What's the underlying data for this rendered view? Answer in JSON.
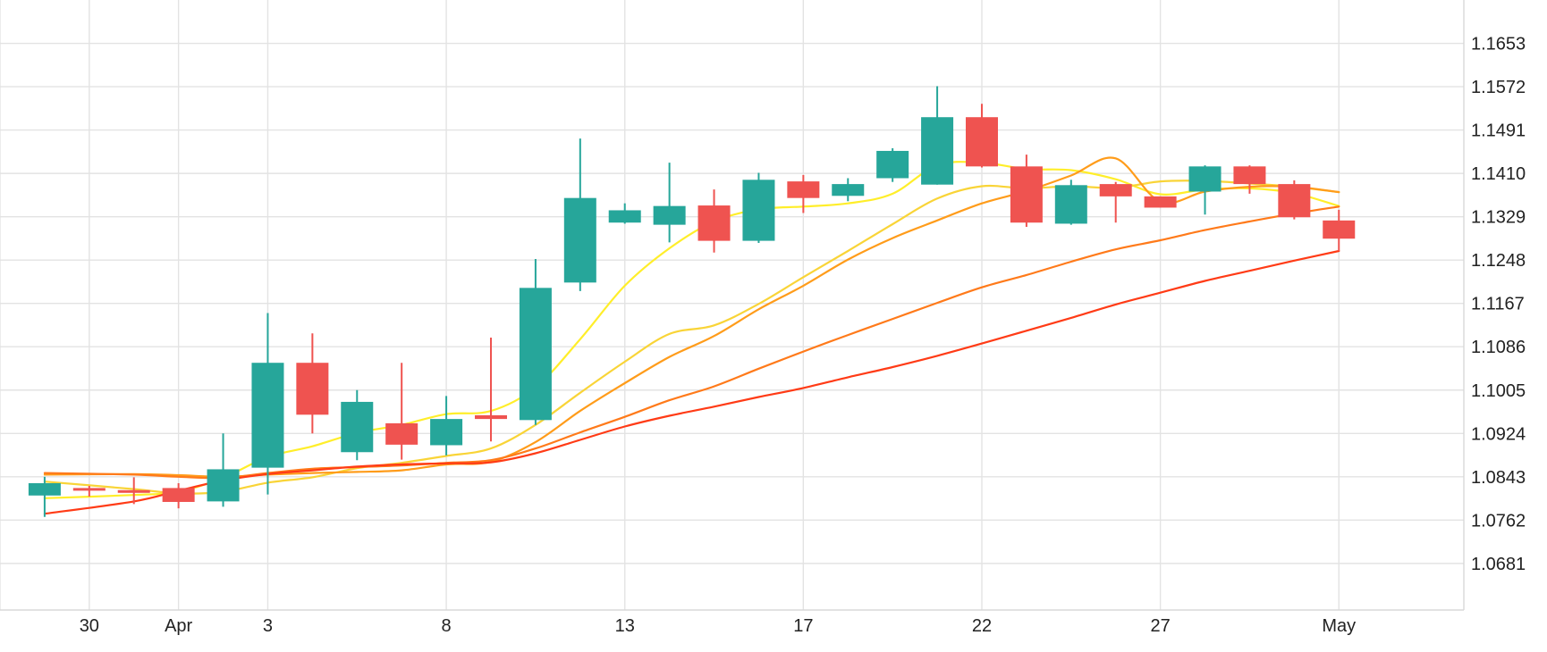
{
  "chart_data": {
    "type": "candlestick",
    "title": "",
    "xlabel": "",
    "ylabel": "",
    "grid": true,
    "colors": {
      "up": "#26a69a",
      "down": "#ef5350"
    },
    "x_range": [
      -2,
      30.8
    ],
    "y_range": [
      1.0594,
      1.1734
    ],
    "y_ticks": [
      1.0681,
      1.0762,
      1.0843,
      1.0924,
      1.1005,
      1.1086,
      1.1167,
      1.1248,
      1.1329,
      1.141,
      1.1491,
      1.1572,
      1.1653
    ],
    "y_tick_labels": [
      "1.0681",
      "1.0762",
      "1.0843",
      "1.0924",
      "1.1005",
      "1.1086",
      "1.1167",
      "1.1248",
      "1.1329",
      "1.1410",
      "1.1491",
      "1.1572",
      "1.1653"
    ],
    "x_ticks": [
      {
        "x": 0,
        "label": "30"
      },
      {
        "x": 2,
        "label": "Apr"
      },
      {
        "x": 4,
        "label": "3"
      },
      {
        "x": 8,
        "label": "8"
      },
      {
        "x": 12,
        "label": "13"
      },
      {
        "x": 16,
        "label": "17"
      },
      {
        "x": 20,
        "label": "22"
      },
      {
        "x": 24,
        "label": "27"
      },
      {
        "x": 28,
        "label": "May"
      }
    ],
    "extra_gridlines_x": [
      -2
    ],
    "candles": [
      {
        "x": -1,
        "open": 1.0808,
        "high": 1.0843,
        "low": 1.0768,
        "close": 1.0831
      },
      {
        "x": 0,
        "open": 1.0822,
        "high": 1.0826,
        "low": 1.0806,
        "close": 1.0819
      },
      {
        "x": 1,
        "open": 1.0818,
        "high": 1.0842,
        "low": 1.0792,
        "close": 1.0815
      },
      {
        "x": 2,
        "open": 1.0822,
        "high": 1.0831,
        "low": 1.0784,
        "close": 1.0796
      },
      {
        "x": 3,
        "open": 1.0797,
        "high": 1.0924,
        "low": 1.0787,
        "close": 1.0857
      },
      {
        "x": 4,
        "open": 1.086,
        "high": 1.1149,
        "low": 1.081,
        "close": 1.1056
      },
      {
        "x": 5,
        "open": 1.1056,
        "high": 1.1111,
        "low": 1.0924,
        "close": 1.0959
      },
      {
        "x": 6,
        "open": 1.0889,
        "high": 1.1005,
        "low": 1.0874,
        "close": 1.0983
      },
      {
        "x": 7,
        "open": 1.0943,
        "high": 1.1056,
        "low": 1.0875,
        "close": 1.0903
      },
      {
        "x": 8,
        "open": 1.0902,
        "high": 1.0994,
        "low": 1.0883,
        "close": 1.0951
      },
      {
        "x": 9,
        "open": 1.0958,
        "high": 1.1103,
        "low": 1.0909,
        "close": 1.0951
      },
      {
        "x": 10,
        "open": 1.0949,
        "high": 1.125,
        "low": 1.094,
        "close": 1.1196
      },
      {
        "x": 11,
        "open": 1.1206,
        "high": 1.1475,
        "low": 1.119,
        "close": 1.1364
      },
      {
        "x": 12,
        "open": 1.1318,
        "high": 1.1354,
        "low": 1.1316,
        "close": 1.1341
      },
      {
        "x": 13,
        "open": 1.1314,
        "high": 1.143,
        "low": 1.1281,
        "close": 1.1349
      },
      {
        "x": 14,
        "open": 1.135,
        "high": 1.138,
        "low": 1.1262,
        "close": 1.1284
      },
      {
        "x": 15,
        "open": 1.1284,
        "high": 1.1411,
        "low": 1.128,
        "close": 1.1398
      },
      {
        "x": 16,
        "open": 1.1395,
        "high": 1.1407,
        "low": 1.1336,
        "close": 1.1364
      },
      {
        "x": 17,
        "open": 1.1368,
        "high": 1.1401,
        "low": 1.1358,
        "close": 1.139
      },
      {
        "x": 18,
        "open": 1.1401,
        "high": 1.1457,
        "low": 1.1394,
        "close": 1.1452
      },
      {
        "x": 19,
        "open": 1.1389,
        "high": 1.1573,
        "low": 1.1389,
        "close": 1.1515
      },
      {
        "x": 20,
        "open": 1.1515,
        "high": 1.154,
        "low": 1.1421,
        "close": 1.1423
      },
      {
        "x": 21,
        "open": 1.1423,
        "high": 1.1445,
        "low": 1.131,
        "close": 1.1318
      },
      {
        "x": 22,
        "open": 1.1316,
        "high": 1.1398,
        "low": 1.1314,
        "close": 1.1388
      },
      {
        "x": 23,
        "open": 1.139,
        "high": 1.1394,
        "low": 1.1318,
        "close": 1.1367
      },
      {
        "x": 24,
        "open": 1.1367,
        "high": 1.1367,
        "low": 1.1346,
        "close": 1.1346
      },
      {
        "x": 25,
        "open": 1.1376,
        "high": 1.1425,
        "low": 1.1333,
        "close": 1.1423
      },
      {
        "x": 26,
        "open": 1.1423,
        "high": 1.1425,
        "low": 1.1372,
        "close": 1.139
      },
      {
        "x": 27,
        "open": 1.139,
        "high": 1.1397,
        "low": 1.1324,
        "close": 1.1328
      },
      {
        "x": 28,
        "open": 1.1322,
        "high": 1.1342,
        "low": 1.1265,
        "close": 1.1288
      }
    ],
    "series": [
      {
        "color": "#ffee2a",
        "points": [
          [
            -1,
            1.0803
          ],
          [
            1,
            1.0809
          ],
          [
            2,
            1.0815
          ],
          [
            3,
            1.0841
          ],
          [
            4,
            1.088
          ],
          [
            5,
            1.09
          ],
          [
            6,
            1.0925
          ],
          [
            7,
            1.094
          ],
          [
            8,
            1.096
          ],
          [
            9,
            1.0966
          ],
          [
            10,
            1.101
          ],
          [
            11,
            1.11
          ],
          [
            12,
            1.12
          ],
          [
            13,
            1.127
          ],
          [
            14,
            1.132
          ],
          [
            15,
            1.1343
          ],
          [
            16,
            1.1348
          ],
          [
            17,
            1.1354
          ],
          [
            18,
            1.1372
          ],
          [
            19,
            1.1425
          ],
          [
            20,
            1.143
          ],
          [
            21,
            1.1418
          ],
          [
            22,
            1.1416
          ],
          [
            23,
            1.1399
          ],
          [
            24,
            1.1371
          ],
          [
            25,
            1.138
          ],
          [
            26,
            1.1382
          ],
          [
            27,
            1.1373
          ],
          [
            28,
            1.1349
          ]
        ]
      },
      {
        "color": "#f9d437",
        "points": [
          [
            -1,
            1.0834
          ],
          [
            1,
            1.082
          ],
          [
            2,
            1.0812
          ],
          [
            3,
            1.0815
          ],
          [
            4,
            1.0832
          ],
          [
            5,
            1.0842
          ],
          [
            6,
            1.0859
          ],
          [
            7,
            1.0869
          ],
          [
            8,
            1.0882
          ],
          [
            9,
            1.0896
          ],
          [
            10,
            1.094
          ],
          [
            11,
            1.1
          ],
          [
            12,
            1.1058
          ],
          [
            13,
            1.111
          ],
          [
            14,
            1.1126
          ],
          [
            15,
            1.1166
          ],
          [
            16,
            1.1216
          ],
          [
            17,
            1.1265
          ],
          [
            18,
            1.1315
          ],
          [
            19,
            1.1363
          ],
          [
            20,
            1.1386
          ],
          [
            21,
            1.1382
          ],
          [
            22,
            1.1386
          ],
          [
            23,
            1.1383
          ],
          [
            24,
            1.1395
          ],
          [
            25,
            1.1396
          ],
          [
            26,
            1.1391
          ],
          [
            27,
            1.1385
          ],
          [
            28,
            1.1375
          ]
        ]
      },
      {
        "color": "#ff9c1a",
        "points": [
          [
            -1,
            1.0847
          ],
          [
            1,
            1.0848
          ],
          [
            2,
            1.0846
          ],
          [
            3,
            1.0843
          ],
          [
            4,
            1.0847
          ],
          [
            5,
            1.085
          ],
          [
            6,
            1.0852
          ],
          [
            7,
            1.0855
          ],
          [
            8,
            1.0866
          ],
          [
            9,
            1.0871
          ],
          [
            10,
            1.0908
          ],
          [
            11,
            1.0966
          ],
          [
            12,
            1.1018
          ],
          [
            13,
            1.1067
          ],
          [
            14,
            1.1106
          ],
          [
            15,
            1.1156
          ],
          [
            16,
            1.12
          ],
          [
            17,
            1.1249
          ],
          [
            18,
            1.1289
          ],
          [
            19,
            1.1322
          ],
          [
            20,
            1.1354
          ],
          [
            21,
            1.1377
          ],
          [
            22,
            1.1406
          ],
          [
            23,
            1.1438
          ],
          [
            24,
            1.1357
          ],
          [
            25,
            1.1376
          ],
          [
            26,
            1.1385
          ],
          [
            27,
            1.1385
          ],
          [
            28,
            1.1375
          ]
        ]
      },
      {
        "color": "#ff7a1a",
        "points": [
          [
            -1,
            1.085
          ],
          [
            1,
            1.0847
          ],
          [
            2,
            1.0843
          ],
          [
            3,
            1.0841
          ],
          [
            4,
            1.085
          ],
          [
            5,
            1.0858
          ],
          [
            6,
            1.0861
          ],
          [
            7,
            1.0864
          ],
          [
            8,
            1.0869
          ],
          [
            9,
            1.0874
          ],
          [
            10,
            1.0896
          ],
          [
            11,
            1.0926
          ],
          [
            12,
            1.0955
          ],
          [
            13,
            1.0986
          ],
          [
            14,
            1.1012
          ],
          [
            15,
            1.1045
          ],
          [
            16,
            1.1077
          ],
          [
            17,
            1.1108
          ],
          [
            18,
            1.1138
          ],
          [
            19,
            1.1168
          ],
          [
            20,
            1.1197
          ],
          [
            21,
            1.122
          ],
          [
            22,
            1.1245
          ],
          [
            23,
            1.1268
          ],
          [
            24,
            1.1285
          ],
          [
            25,
            1.1304
          ],
          [
            26,
            1.132
          ],
          [
            27,
            1.1335
          ],
          [
            28,
            1.1348
          ]
        ]
      },
      {
        "color": "#ff3b16",
        "points": [
          [
            -1,
            1.0774
          ],
          [
            1,
            1.0797
          ],
          [
            2,
            1.0817
          ],
          [
            3,
            1.0836
          ],
          [
            4,
            1.0848
          ],
          [
            5,
            1.0855
          ],
          [
            6,
            1.0862
          ],
          [
            7,
            1.0866
          ],
          [
            8,
            1.0868
          ],
          [
            9,
            1.087
          ],
          [
            10,
            1.0887
          ],
          [
            11,
            1.0912
          ],
          [
            12,
            1.0937
          ],
          [
            13,
            1.0957
          ],
          [
            14,
            1.0974
          ],
          [
            15,
            1.0992
          ],
          [
            16,
            1.1009
          ],
          [
            17,
            1.1029
          ],
          [
            18,
            1.1048
          ],
          [
            19,
            1.1069
          ],
          [
            20,
            1.1092
          ],
          [
            21,
            1.1116
          ],
          [
            22,
            1.114
          ],
          [
            23,
            1.1165
          ],
          [
            24,
            1.1187
          ],
          [
            25,
            1.1209
          ],
          [
            26,
            1.1228
          ],
          [
            27,
            1.1247
          ],
          [
            28,
            1.1265
          ]
        ]
      }
    ]
  }
}
